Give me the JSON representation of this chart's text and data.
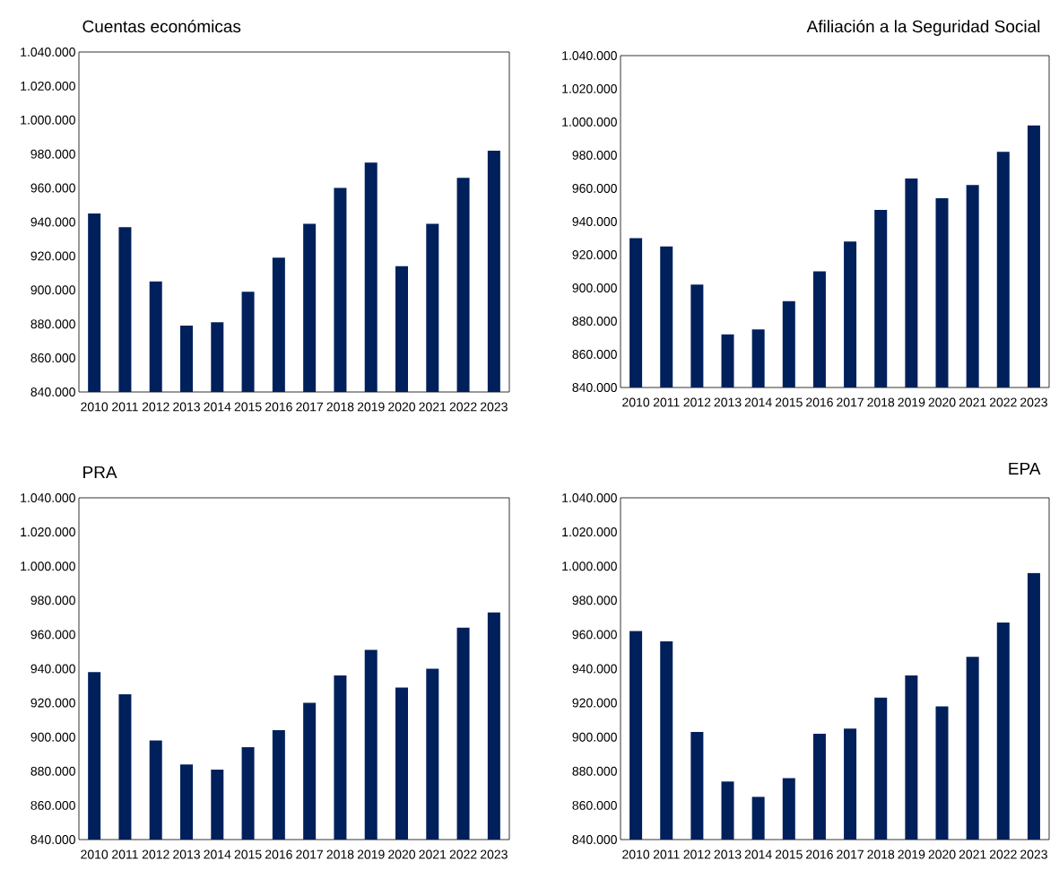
{
  "chart_data": [
    {
      "type": "bar",
      "title": "Cuentas económicas",
      "categories": [
        "2010",
        "2011",
        "2012",
        "2013",
        "2014",
        "2015",
        "2016",
        "2017",
        "2018",
        "2019",
        "2020",
        "2021",
        "2022",
        "2023"
      ],
      "color": "#00205b",
      "values": [
        945000,
        937000,
        905000,
        879000,
        881000,
        899000,
        919000,
        939000,
        960000,
        975000,
        914000,
        939000,
        966000,
        982000
      ],
      "ylim": [
        840000,
        1040000
      ],
      "yticks": [
        {
          "value": 840000,
          "label": "840.000"
        },
        {
          "value": 860000,
          "label": "860.000"
        },
        {
          "value": 880000,
          "label": "880.000"
        },
        {
          "value": 900000,
          "label": "900.000"
        },
        {
          "value": 920000,
          "label": "920.000"
        },
        {
          "value": 940000,
          "label": "940.000"
        },
        {
          "value": 960000,
          "label": "960.000"
        },
        {
          "value": 980000,
          "label": "980.000"
        },
        {
          "value": 1000000,
          "label": "1.000.000"
        },
        {
          "value": 1020000,
          "label": "1.020.000"
        },
        {
          "value": 1040000,
          "label": "1.040.000"
        }
      ]
    },
    {
      "type": "bar",
      "title": "Afiliación a la Seguridad Social",
      "categories": [
        "2010",
        "2011",
        "2012",
        "2013",
        "2014",
        "2015",
        "2016",
        "2017",
        "2018",
        "2019",
        "2020",
        "2021",
        "2022",
        "2023"
      ],
      "color": "#00205b",
      "values": [
        930000,
        925000,
        902000,
        872000,
        875000,
        892000,
        910000,
        928000,
        947000,
        966000,
        954000,
        962000,
        982000,
        998000
      ],
      "ylim": [
        840000,
        1040000
      ],
      "yticks": [
        {
          "value": 840000,
          "label": "840.000"
        },
        {
          "value": 860000,
          "label": "860.000"
        },
        {
          "value": 880000,
          "label": "880.000"
        },
        {
          "value": 900000,
          "label": "900.000"
        },
        {
          "value": 920000,
          "label": "920.000"
        },
        {
          "value": 940000,
          "label": "940.000"
        },
        {
          "value": 960000,
          "label": "960.000"
        },
        {
          "value": 980000,
          "label": "980.000"
        },
        {
          "value": 1000000,
          "label": "1.000.000"
        },
        {
          "value": 1020000,
          "label": "1.020.000"
        },
        {
          "value": 1040000,
          "label": "1.040.000"
        }
      ]
    },
    {
      "type": "bar",
      "title": "PRA",
      "categories": [
        "2010",
        "2011",
        "2012",
        "2013",
        "2014",
        "2015",
        "2016",
        "2017",
        "2018",
        "2019",
        "2020",
        "2021",
        "2022",
        "2023"
      ],
      "color": "#00205b",
      "values": [
        938000,
        925000,
        898000,
        884000,
        881000,
        894000,
        904000,
        920000,
        936000,
        951000,
        929000,
        940000,
        964000,
        973000
      ],
      "ylim": [
        840000,
        1040000
      ],
      "yticks": [
        {
          "value": 840000,
          "label": "840.000"
        },
        {
          "value": 860000,
          "label": "860.000"
        },
        {
          "value": 880000,
          "label": "880.000"
        },
        {
          "value": 900000,
          "label": "900.000"
        },
        {
          "value": 920000,
          "label": "920.000"
        },
        {
          "value": 940000,
          "label": "940.000"
        },
        {
          "value": 960000,
          "label": "960.000"
        },
        {
          "value": 980000,
          "label": "980.000"
        },
        {
          "value": 1000000,
          "label": "1.000.000"
        },
        {
          "value": 1020000,
          "label": "1.020.000"
        },
        {
          "value": 1040000,
          "label": "1.040.000"
        }
      ]
    },
    {
      "type": "bar",
      "title": "EPA",
      "categories": [
        "2010",
        "2011",
        "2012",
        "2013",
        "2014",
        "2015",
        "2016",
        "2017",
        "2018",
        "2019",
        "2020",
        "2021",
        "2022",
        "2023"
      ],
      "color": "#00205b",
      "values": [
        962000,
        956000,
        903000,
        874000,
        865000,
        876000,
        902000,
        905000,
        923000,
        936000,
        918000,
        947000,
        967000,
        996000
      ],
      "ylim": [
        840000,
        1040000
      ],
      "yticks": [
        {
          "value": 840000,
          "label": "840.000"
        },
        {
          "value": 860000,
          "label": "860.000"
        },
        {
          "value": 880000,
          "label": "880.000"
        },
        {
          "value": 900000,
          "label": "900.000"
        },
        {
          "value": 920000,
          "label": "920.000"
        },
        {
          "value": 940000,
          "label": "940.000"
        },
        {
          "value": 960000,
          "label": "960.000"
        },
        {
          "value": 980000,
          "label": "980.000"
        },
        {
          "value": 1000000,
          "label": "1.000.000"
        },
        {
          "value": 1020000,
          "label": "1.020.000"
        },
        {
          "value": 1040000,
          "label": "1.040.000"
        }
      ]
    }
  ]
}
